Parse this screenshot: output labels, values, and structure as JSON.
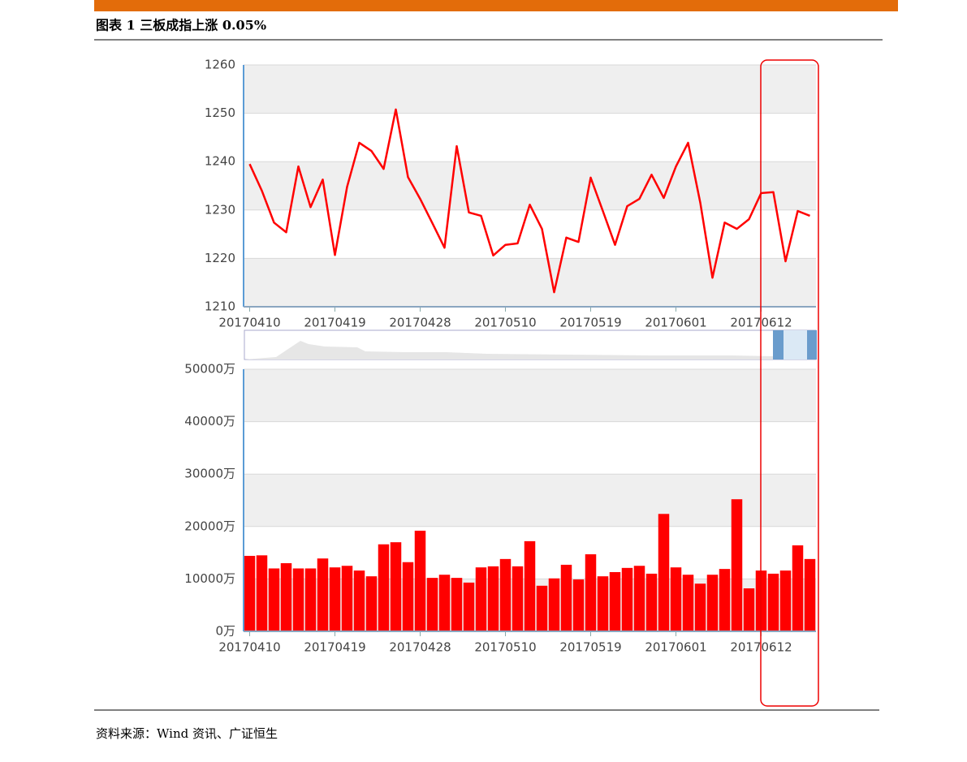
{
  "header": {
    "title": "图表 1 三板成指上涨 0.05%"
  },
  "chart_data": [
    {
      "type": "line",
      "color": "#ff0000",
      "grid": true,
      "categories": [
        "20170410",
        null,
        null,
        null,
        null,
        null,
        null,
        "20170419",
        null,
        null,
        null,
        null,
        null,
        null,
        "20170428",
        null,
        null,
        null,
        null,
        null,
        null,
        "20170510",
        null,
        null,
        null,
        null,
        null,
        null,
        "20170519",
        null,
        null,
        null,
        null,
        null,
        null,
        "20170601",
        null,
        null,
        null,
        null,
        null,
        null,
        "20170612",
        null,
        null,
        null,
        null
      ],
      "values": [
        1239.5,
        1234,
        1227.4,
        1225.4,
        1239,
        1230.6,
        1236.3,
        1220.7,
        1234.8,
        1243.9,
        1242.2,
        1238.5,
        1250.8,
        1236.8,
        1232.3,
        1227.3,
        1222.2,
        1243.2,
        1229.5,
        1228.8,
        1220.6,
        1222.8,
        1223.1,
        1231.1,
        1226.1,
        1213,
        1224.3,
        1223.4,
        1236.7,
        1229.8,
        1222.8,
        1230.8,
        1232.3,
        1237.3,
        1232.5,
        1239,
        1243.9,
        1231.5,
        1216,
        1227.4,
        1226.1,
        1228.1,
        1233.5,
        1233.7,
        1219.4,
        1229.8,
        1228.8
      ],
      "ylim": [
        1210,
        1260
      ],
      "yticks": [
        1210,
        1220,
        1230,
        1240,
        1250,
        1260
      ]
    },
    {
      "type": "bar",
      "color": "#ff0000",
      "grid": true,
      "categories": [
        "20170410",
        null,
        null,
        null,
        null,
        null,
        null,
        "20170419",
        null,
        null,
        null,
        null,
        null,
        null,
        "20170428",
        null,
        null,
        null,
        null,
        null,
        null,
        "20170510",
        null,
        null,
        null,
        null,
        null,
        null,
        "20170519",
        null,
        null,
        null,
        null,
        null,
        null,
        "20170601",
        null,
        null,
        null,
        null,
        null,
        null,
        "20170612",
        null,
        null,
        null,
        null
      ],
      "values": [
        14400,
        14500,
        12000,
        13000,
        12000,
        12000,
        13900,
        12200,
        12500,
        11600,
        10500,
        16600,
        17000,
        13200,
        19200,
        10200,
        10800,
        10200,
        9300,
        12200,
        12400,
        13800,
        12400,
        17200,
        8700,
        10100,
        12700,
        9900,
        14700,
        10500,
        11300,
        12100,
        12500,
        11000,
        22400,
        12200,
        10800,
        9100,
        10800,
        11900,
        25200,
        8200,
        11600,
        11000,
        11600,
        16400,
        13800
      ],
      "ylim": [
        0,
        50000
      ],
      "yticks": [
        {
          "value": 0,
          "label": "0万"
        },
        {
          "value": 10000,
          "label": "10000万"
        },
        {
          "value": 20000,
          "label": "20000万"
        },
        {
          "value": 30000,
          "label": "30000万"
        },
        {
          "value": 40000,
          "label": "40000万"
        },
        {
          "value": 50000,
          "label": "50000万"
        }
      ]
    }
  ],
  "source": "资料来源：Wind 资讯、广证恒生"
}
